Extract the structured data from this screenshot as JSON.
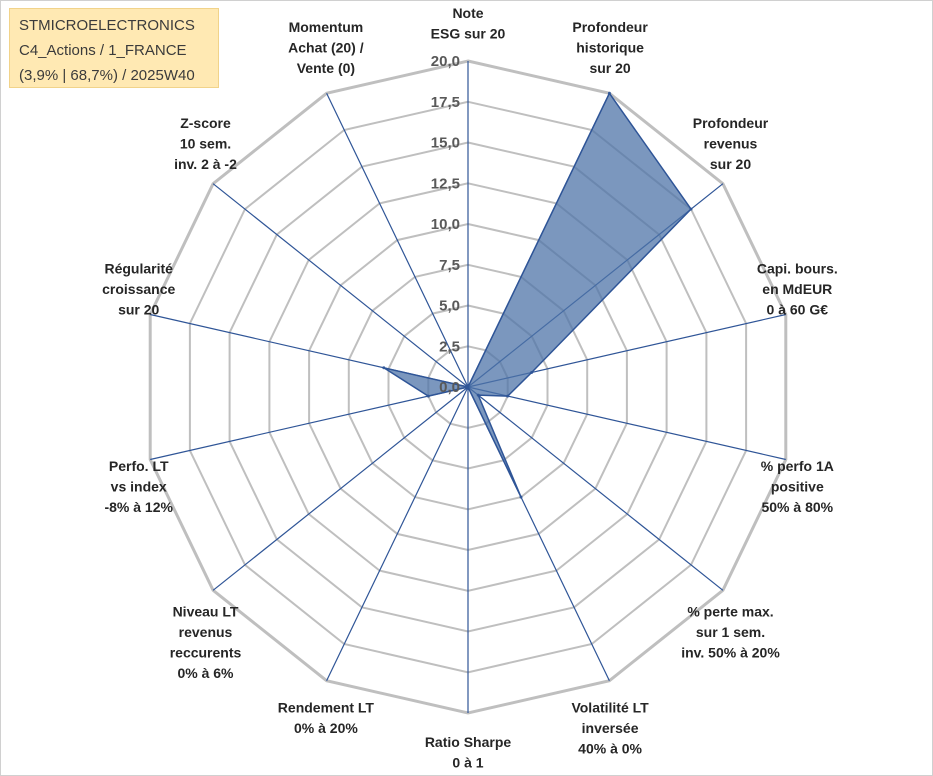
{
  "info_box": {
    "line1": "STMICROELECTRONICS",
    "line2": "C4_Actions / 1_FRANCE",
    "line3": "(3,9% | 68,7%) / 2025W40"
  },
  "colors": {
    "grid": "#bfbfbf",
    "spoke": "#2f5597",
    "fill": "#4f74a8",
    "fill_opacity": 0.75,
    "stroke": "#2f5597",
    "info_bg": "#ffe9b3"
  },
  "chart_data": {
    "type": "radar",
    "title": "",
    "r_range": [
      0,
      20
    ],
    "r_ticks": [
      "0,0",
      "2,5",
      "5,0",
      "7,5",
      "10,0",
      "12,5",
      "15,0",
      "17,5",
      "20,0"
    ],
    "grid": true,
    "legend": "none",
    "axes": [
      {
        "label": [
          "Note",
          "ESG sur 20"
        ],
        "value": 0
      },
      {
        "label": [
          "Profondeur",
          "historique",
          "sur 20"
        ],
        "value": 20
      },
      {
        "label": [
          "Profondeur",
          "revenus",
          "sur 20"
        ],
        "value": 17.5
      },
      {
        "label": [
          "Capi. bours.",
          "en MdEUR",
          "0 à 60 G€"
        ],
        "value": 4.0
      },
      {
        "label": [
          "% perfo 1A",
          "positive",
          "50% à 80%"
        ],
        "value": 2.5
      },
      {
        "label": [
          "% perte max.",
          "sur 1 sem.",
          "inv. 50% à 20%"
        ],
        "value": 0.8
      },
      {
        "label": [
          "Volatilité LT",
          "inversée",
          "40% à 0%"
        ],
        "value": 7.5
      },
      {
        "label": [
          "Ratio Sharpe",
          "0 à 1"
        ],
        "value": 0
      },
      {
        "label": [
          "Rendement LT",
          "0% à 20%"
        ],
        "value": 0
      },
      {
        "label": [
          "Niveau LT",
          "revenus",
          "reccurents",
          "0% à 6%"
        ],
        "value": 0
      },
      {
        "label": [
          "Perfo. LT",
          "vs index",
          "-8% à 12%"
        ],
        "value": 2.5
      },
      {
        "label": [
          "Régularité",
          "croissance",
          "sur 20"
        ],
        "value": 5.3
      },
      {
        "label": [
          "Z-score",
          "10 sem.",
          "inv. 2 à -2"
        ],
        "value": 0
      },
      {
        "label": [
          "Momentum",
          "Achat (20) /",
          "Vente (0)"
        ],
        "value": 0
      }
    ]
  }
}
